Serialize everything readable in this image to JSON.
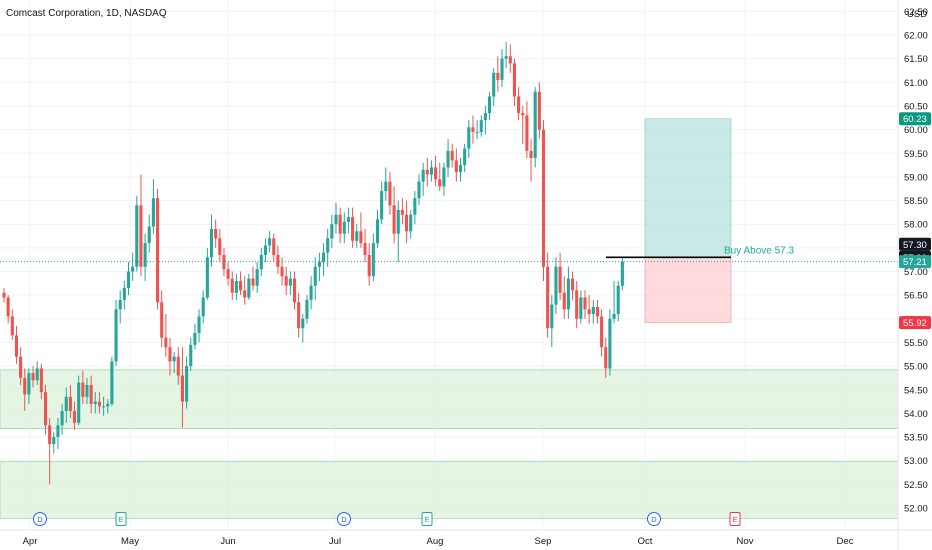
{
  "chart_data": {
    "type": "candlestick",
    "title": "Comcast Corporation, 1D, NASDAQ",
    "currency": "USD",
    "y_ticks": [
      "52.00",
      "52.50",
      "53.00",
      "53.50",
      "54.00",
      "54.50",
      "55.00",
      "55.50",
      "56.00",
      "56.50",
      "57.00",
      "57.50",
      "58.00",
      "58.50",
      "59.00",
      "59.50",
      "60.00",
      "60.50",
      "61.00",
      "61.50",
      "62.00",
      "62.50"
    ],
    "x_ticks": [
      "Apr",
      "May",
      "Jun",
      "Jul",
      "Aug",
      "Sep",
      "Oct",
      "Nov",
      "Dec"
    ],
    "ylim": [
      51.85,
      62.65
    ],
    "colors": {
      "up": "#26a69a",
      "down": "#ef5350",
      "target": "#089981",
      "stop": "#f23645",
      "current": "#26a69a",
      "zone": "#d6f0d6",
      "line": "#000000"
    },
    "price_labels": [
      {
        "text": "60.23",
        "value": 60.23,
        "color": "#089981"
      },
      {
        "text": "57.30",
        "value": 57.3,
        "color": "#131722"
      },
      {
        "text": "57.21",
        "value": 57.21,
        "color": "#26a69a"
      },
      {
        "text": "55.92",
        "value": 55.92,
        "color": "#f23645"
      }
    ],
    "current_price": 57.21,
    "trade_zone": {
      "entry": 57.3,
      "target": 60.23,
      "stop": 55.92
    },
    "buy_line": {
      "value": 57.3,
      "label": "Buy Above 57.3",
      "color": "#000000",
      "label_color": "#26a69a"
    },
    "support_zones": [
      {
        "from": 53.68,
        "to": 54.92
      },
      {
        "from": 51.78,
        "to": 52.98
      }
    ],
    "event_markers": [
      {
        "letter": "D",
        "month": "Apr",
        "color": "#2962ff"
      },
      {
        "letter": "E",
        "month": "May",
        "color": "#26a69a"
      },
      {
        "letter": "D",
        "month": "Jul",
        "color": "#2962ff"
      },
      {
        "letter": "E",
        "month": "Aug",
        "color": "#26a69a"
      },
      {
        "letter": "D",
        "month": "Oct",
        "color": "#2962ff"
      },
      {
        "letter": "E",
        "month": "Nov",
        "color": "#f23645"
      }
    ],
    "candles": [
      [
        56.55,
        56.65,
        56.35,
        56.45
      ],
      [
        56.45,
        56.5,
        55.9,
        56.05
      ],
      [
        56.05,
        56.2,
        55.55,
        55.65
      ],
      [
        55.65,
        55.85,
        55.05,
        55.2
      ],
      [
        55.2,
        55.4,
        54.6,
        54.75
      ],
      [
        54.75,
        54.95,
        54.05,
        54.4
      ],
      [
        54.4,
        54.95,
        54.2,
        54.85
      ],
      [
        54.85,
        55.0,
        54.55,
        54.7
      ],
      [
        54.7,
        55.1,
        54.6,
        54.95
      ],
      [
        54.95,
        55.05,
        54.3,
        54.45
      ],
      [
        54.45,
        54.6,
        53.55,
        53.75
      ],
      [
        53.75,
        53.9,
        52.5,
        53.35
      ],
      [
        53.35,
        53.6,
        53.15,
        53.5
      ],
      [
        53.5,
        53.9,
        53.25,
        53.75
      ],
      [
        53.75,
        54.2,
        53.55,
        54.05
      ],
      [
        54.05,
        54.55,
        53.8,
        54.35
      ],
      [
        54.35,
        54.6,
        53.9,
        54.05
      ],
      [
        54.05,
        54.25,
        53.65,
        53.8
      ],
      [
        53.8,
        54.8,
        53.75,
        54.65
      ],
      [
        54.65,
        54.9,
        54.2,
        54.35
      ],
      [
        54.35,
        54.75,
        54.2,
        54.6
      ],
      [
        54.6,
        54.8,
        54.0,
        54.2
      ],
      [
        54.2,
        54.45,
        54.0,
        54.25
      ],
      [
        54.25,
        54.45,
        54.0,
        54.15
      ],
      [
        54.15,
        54.35,
        53.95,
        54.15
      ],
      [
        54.15,
        54.3,
        54.0,
        54.2
      ],
      [
        54.2,
        55.2,
        54.15,
        55.1
      ],
      [
        55.1,
        56.4,
        55.0,
        56.2
      ],
      [
        56.2,
        56.6,
        55.9,
        56.4
      ],
      [
        56.4,
        56.8,
        56.2,
        56.65
      ],
      [
        56.65,
        57.2,
        56.5,
        57.0
      ],
      [
        57.0,
        57.4,
        56.8,
        57.1
      ],
      [
        57.1,
        58.6,
        57.0,
        58.4
      ],
      [
        58.4,
        59.05,
        56.9,
        57.1
      ],
      [
        57.1,
        57.8,
        56.8,
        57.6
      ],
      [
        57.6,
        58.2,
        57.4,
        57.95
      ],
      [
        57.95,
        58.95,
        57.8,
        58.55
      ],
      [
        58.55,
        58.75,
        56.2,
        56.35
      ],
      [
        56.35,
        56.6,
        55.4,
        55.6
      ],
      [
        55.6,
        56.1,
        55.2,
        55.4
      ],
      [
        55.4,
        55.6,
        54.8,
        55.1
      ],
      [
        55.1,
        55.3,
        54.85,
        55.2
      ],
      [
        55.2,
        55.4,
        54.6,
        54.8
      ],
      [
        54.8,
        55.4,
        53.7,
        54.25
      ],
      [
        54.25,
        55.2,
        54.1,
        55.0
      ],
      [
        55.0,
        55.6,
        54.9,
        55.45
      ],
      [
        55.45,
        55.9,
        55.35,
        55.7
      ],
      [
        55.7,
        56.2,
        55.5,
        56.05
      ],
      [
        56.05,
        56.6,
        55.9,
        56.45
      ],
      [
        56.45,
        57.5,
        56.4,
        57.3
      ],
      [
        57.3,
        58.2,
        57.1,
        57.9
      ],
      [
        57.9,
        58.1,
        57.5,
        57.7
      ],
      [
        57.7,
        57.9,
        57.2,
        57.35
      ],
      [
        57.35,
        57.5,
        56.9,
        57.05
      ],
      [
        57.05,
        57.2,
        56.7,
        56.85
      ],
      [
        56.85,
        57.0,
        56.4,
        56.55
      ],
      [
        56.55,
        56.95,
        56.4,
        56.8
      ],
      [
        56.8,
        57.0,
        56.5,
        56.6
      ],
      [
        56.6,
        56.9,
        56.3,
        56.45
      ],
      [
        56.45,
        56.95,
        56.4,
        56.85
      ],
      [
        56.85,
        57.1,
        56.6,
        56.7
      ],
      [
        56.7,
        57.2,
        56.55,
        57.05
      ],
      [
        57.05,
        57.5,
        56.9,
        57.35
      ],
      [
        57.35,
        57.7,
        57.2,
        57.55
      ],
      [
        57.55,
        57.85,
        57.4,
        57.7
      ],
      [
        57.7,
        57.8,
        57.2,
        57.35
      ],
      [
        57.35,
        57.55,
        56.95,
        57.1
      ],
      [
        57.1,
        57.3,
        56.7,
        56.9
      ],
      [
        56.9,
        57.1,
        56.5,
        56.7
      ],
      [
        56.7,
        57.0,
        56.5,
        56.85
      ],
      [
        56.85,
        57.0,
        56.2,
        56.35
      ],
      [
        56.35,
        56.55,
        55.6,
        55.8
      ],
      [
        55.8,
        56.1,
        55.5,
        56.0
      ],
      [
        56.0,
        56.5,
        55.9,
        56.4
      ],
      [
        56.4,
        56.9,
        56.2,
        56.7
      ],
      [
        56.7,
        57.3,
        56.4,
        57.1
      ],
      [
        57.1,
        57.4,
        56.8,
        57.2
      ],
      [
        57.2,
        57.6,
        56.9,
        57.4
      ],
      [
        57.4,
        57.9,
        57.1,
        57.7
      ],
      [
        57.7,
        58.2,
        57.5,
        58.0
      ],
      [
        58.0,
        58.45,
        57.8,
        58.2
      ],
      [
        58.2,
        58.35,
        57.6,
        57.8
      ],
      [
        57.8,
        58.25,
        57.6,
        58.05
      ],
      [
        58.05,
        58.35,
        57.8,
        58.15
      ],
      [
        58.15,
        58.35,
        57.5,
        57.65
      ],
      [
        57.65,
        58.0,
        57.5,
        57.85
      ],
      [
        57.85,
        58.25,
        57.5,
        57.6
      ],
      [
        57.6,
        57.9,
        57.2,
        57.35
      ],
      [
        57.35,
        57.6,
        56.7,
        56.9
      ],
      [
        56.9,
        57.8,
        56.8,
        57.6
      ],
      [
        57.6,
        58.3,
        57.5,
        58.1
      ],
      [
        58.1,
        58.9,
        58.0,
        58.7
      ],
      [
        58.7,
        59.2,
        58.5,
        58.9
      ],
      [
        58.9,
        59.1,
        58.2,
        58.4
      ],
      [
        58.4,
        58.8,
        57.6,
        57.8
      ],
      [
        57.8,
        58.5,
        57.2,
        58.3
      ],
      [
        58.3,
        58.55,
        58.0,
        58.2
      ],
      [
        58.2,
        58.5,
        57.6,
        57.85
      ],
      [
        57.85,
        58.3,
        57.7,
        58.2
      ],
      [
        58.2,
        58.7,
        58.0,
        58.55
      ],
      [
        58.55,
        59.05,
        58.4,
        58.9
      ],
      [
        58.9,
        59.3,
        58.6,
        59.15
      ],
      [
        59.15,
        59.4,
        58.8,
        59.05
      ],
      [
        59.05,
        59.35,
        58.9,
        59.2
      ],
      [
        59.2,
        59.45,
        58.8,
        58.95
      ],
      [
        58.95,
        59.3,
        58.7,
        58.8
      ],
      [
        58.8,
        59.3,
        58.6,
        59.2
      ],
      [
        59.2,
        59.8,
        59.0,
        59.55
      ],
      [
        59.55,
        59.7,
        59.2,
        59.35
      ],
      [
        59.35,
        59.6,
        58.9,
        59.1
      ],
      [
        59.1,
        59.4,
        58.9,
        59.25
      ],
      [
        59.25,
        59.7,
        59.1,
        59.6
      ],
      [
        59.6,
        60.2,
        59.4,
        60.05
      ],
      [
        60.05,
        60.3,
        59.7,
        59.95
      ],
      [
        59.95,
        60.2,
        59.8,
        59.95
      ],
      [
        59.95,
        60.3,
        59.85,
        60.2
      ],
      [
        60.2,
        60.5,
        59.9,
        60.35
      ],
      [
        60.35,
        60.8,
        60.2,
        60.7
      ],
      [
        60.7,
        61.3,
        60.5,
        61.2
      ],
      [
        61.2,
        61.55,
        60.8,
        61.05
      ],
      [
        61.05,
        61.7,
        60.9,
        61.5
      ],
      [
        61.5,
        61.85,
        61.3,
        61.55
      ],
      [
        61.55,
        61.8,
        61.2,
        61.4
      ],
      [
        61.4,
        61.5,
        60.5,
        60.7
      ],
      [
        60.7,
        60.9,
        60.2,
        60.35
      ],
      [
        60.35,
        60.5,
        59.7,
        60.3
      ],
      [
        60.3,
        60.6,
        59.4,
        59.55
      ],
      [
        59.55,
        59.8,
        58.9,
        59.4
      ],
      [
        59.4,
        60.9,
        59.2,
        60.8
      ],
      [
        60.8,
        61.0,
        59.8,
        60.0
      ],
      [
        60.0,
        60.2,
        56.8,
        57.1
      ],
      [
        57.1,
        57.4,
        55.6,
        55.8
      ],
      [
        55.8,
        56.5,
        55.4,
        56.3
      ],
      [
        56.3,
        57.3,
        56.1,
        57.1
      ],
      [
        57.1,
        57.4,
        56.4,
        56.55
      ],
      [
        56.55,
        56.9,
        56.0,
        56.2
      ],
      [
        56.2,
        57.1,
        56.0,
        56.85
      ],
      [
        56.85,
        57.0,
        56.4,
        56.6
      ],
      [
        56.6,
        56.8,
        55.8,
        56.0
      ],
      [
        56.0,
        56.6,
        55.9,
        56.45
      ],
      [
        56.45,
        56.6,
        56.0,
        56.2
      ],
      [
        56.2,
        56.5,
        55.9,
        56.1
      ],
      [
        56.1,
        56.4,
        55.9,
        56.25
      ],
      [
        56.25,
        56.4,
        55.9,
        56.05
      ],
      [
        56.05,
        56.2,
        55.2,
        55.4
      ],
      [
        55.4,
        55.6,
        54.75,
        54.95
      ],
      [
        54.95,
        56.2,
        54.8,
        56.0
      ],
      [
        56.0,
        56.8,
        55.9,
        56.1
      ],
      [
        56.1,
        56.8,
        55.95,
        56.7
      ],
      [
        56.7,
        57.3,
        56.6,
        57.21
      ]
    ]
  }
}
